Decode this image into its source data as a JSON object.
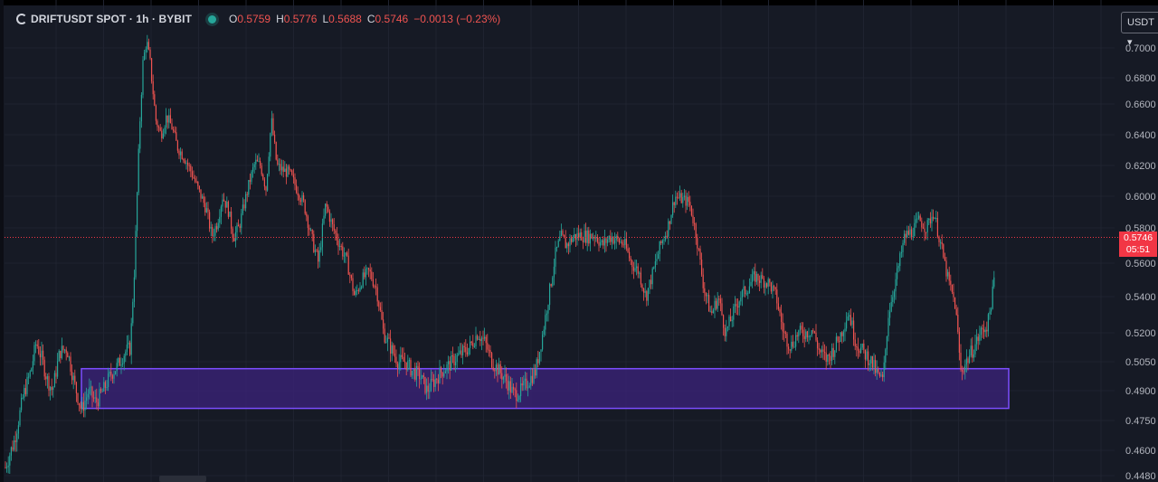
{
  "header": {
    "symbol_title": "DRIFTUSDT SPOT · 1h · BYBIT",
    "ohlc": [
      {
        "key": "O",
        "value": "0.5759"
      },
      {
        "key": "H",
        "value": "0.5776"
      },
      {
        "key": "L",
        "value": "0.5688"
      },
      {
        "key": "C",
        "value": "0.5746"
      }
    ],
    "change": "−0.0013 (−0.23%)"
  },
  "currency_button": {
    "label": "USDT ▾"
  },
  "price_tag": {
    "price": "0.5746",
    "countdown": "05:51"
  },
  "colors": {
    "up": "#26a69a",
    "down": "#ef5350",
    "zone_fill": "#3b2278",
    "zone_border": "#7c4dff",
    "background": "#161a25",
    "grid": "#1f2330",
    "price_line": "#f23645"
  },
  "chart_data": {
    "type": "candlestick",
    "symbol": "DRIFTUSDT SPOT",
    "interval": "1h",
    "exchange": "BYBIT",
    "ylim": [
      0.4448,
      0.71
    ],
    "y_ticks": [
      "0.7000",
      "0.6800",
      "0.6600",
      "0.6400",
      "0.6200",
      "0.6000",
      "0.5800",
      "0.5600",
      "0.5400",
      "0.5200",
      "0.5050",
      "0.4900",
      "0.4750",
      "0.4600",
      "0.4480"
    ],
    "last_price": 0.5746,
    "support_zone": {
      "low": 0.4811,
      "high": 0.5014
    },
    "close_path": [
      [
        0,
        0.452
      ],
      [
        10,
        0.465
      ],
      [
        20,
        0.488
      ],
      [
        28,
        0.5
      ],
      [
        34,
        0.515
      ],
      [
        40,
        0.507
      ],
      [
        46,
        0.496
      ],
      [
        52,
        0.49
      ],
      [
        60,
        0.51
      ],
      [
        68,
        0.512
      ],
      [
        76,
        0.494
      ],
      [
        84,
        0.48
      ],
      [
        92,
        0.49
      ],
      [
        100,
        0.484
      ],
      [
        108,
        0.49
      ],
      [
        116,
        0.498
      ],
      [
        124,
        0.503
      ],
      [
        132,
        0.51
      ],
      [
        138,
        0.512
      ],
      [
        143,
        0.56
      ],
      [
        148,
        0.64
      ],
      [
        152,
        0.69
      ],
      [
        156,
        0.705
      ],
      [
        160,
        0.69
      ],
      [
        166,
        0.65
      ],
      [
        172,
        0.64
      ],
      [
        178,
        0.652
      ],
      [
        184,
        0.645
      ],
      [
        190,
        0.632
      ],
      [
        198,
        0.625
      ],
      [
        206,
        0.615
      ],
      [
        214,
        0.603
      ],
      [
        222,
        0.592
      ],
      [
        228,
        0.575
      ],
      [
        234,
        0.583
      ],
      [
        240,
        0.6
      ],
      [
        246,
        0.592
      ],
      [
        252,
        0.575
      ],
      [
        258,
        0.58
      ],
      [
        264,
        0.595
      ],
      [
        270,
        0.61
      ],
      [
        276,
        0.622
      ],
      [
        282,
        0.62
      ],
      [
        288,
        0.605
      ],
      [
        294,
        0.65
      ],
      [
        300,
        0.62
      ],
      [
        306,
        0.617
      ],
      [
        314,
        0.615
      ],
      [
        322,
        0.605
      ],
      [
        330,
        0.595
      ],
      [
        338,
        0.575
      ],
      [
        346,
        0.56
      ],
      [
        354,
        0.595
      ],
      [
        362,
        0.58
      ],
      [
        370,
        0.57
      ],
      [
        378,
        0.56
      ],
      [
        386,
        0.54
      ],
      [
        394,
        0.55
      ],
      [
        402,
        0.555
      ],
      [
        410,
        0.545
      ],
      [
        418,
        0.52
      ],
      [
        426,
        0.512
      ],
      [
        434,
        0.505
      ],
      [
        442,
        0.505
      ],
      [
        450,
        0.5
      ],
      [
        458,
        0.498
      ],
      [
        466,
        0.49
      ],
      [
        474,
        0.495
      ],
      [
        482,
        0.5
      ],
      [
        490,
        0.503
      ],
      [
        498,
        0.507
      ],
      [
        506,
        0.51
      ],
      [
        514,
        0.513
      ],
      [
        522,
        0.52
      ],
      [
        530,
        0.515
      ],
      [
        538,
        0.505
      ],
      [
        546,
        0.5
      ],
      [
        554,
        0.495
      ],
      [
        562,
        0.488
      ],
      [
        570,
        0.49
      ],
      [
        578,
        0.495
      ],
      [
        586,
        0.5
      ],
      [
        594,
        0.52
      ],
      [
        602,
        0.545
      ],
      [
        608,
        0.565
      ],
      [
        614,
        0.575
      ],
      [
        620,
        0.57
      ],
      [
        628,
        0.575
      ],
      [
        636,
        0.576
      ],
      [
        644,
        0.575
      ],
      [
        652,
        0.576
      ],
      [
        660,
        0.57
      ],
      [
        668,
        0.575
      ],
      [
        676,
        0.573
      ],
      [
        684,
        0.571
      ],
      [
        692,
        0.56
      ],
      [
        700,
        0.555
      ],
      [
        708,
        0.54
      ],
      [
        716,
        0.555
      ],
      [
        724,
        0.57
      ],
      [
        732,
        0.58
      ],
      [
        740,
        0.6
      ],
      [
        748,
        0.598
      ],
      [
        756,
        0.596
      ],
      [
        764,
        0.575
      ],
      [
        772,
        0.545
      ],
      [
        780,
        0.53
      ],
      [
        788,
        0.54
      ],
      [
        796,
        0.52
      ],
      [
        804,
        0.53
      ],
      [
        812,
        0.54
      ],
      [
        820,
        0.545
      ],
      [
        828,
        0.552
      ],
      [
        836,
        0.55
      ],
      [
        844,
        0.548
      ],
      [
        852,
        0.54
      ],
      [
        860,
        0.52
      ],
      [
        868,
        0.513
      ],
      [
        876,
        0.52
      ],
      [
        884,
        0.52
      ],
      [
        892,
        0.522
      ],
      [
        900,
        0.51
      ],
      [
        908,
        0.506
      ],
      [
        916,
        0.512
      ],
      [
        924,
        0.52
      ],
      [
        932,
        0.532
      ],
      [
        940,
        0.515
      ],
      [
        948,
        0.51
      ],
      [
        956,
        0.506
      ],
      [
        964,
        0.498
      ],
      [
        970,
        0.495
      ],
      [
        976,
        0.53
      ],
      [
        982,
        0.545
      ],
      [
        988,
        0.56
      ],
      [
        994,
        0.575
      ],
      [
        1002,
        0.578
      ],
      [
        1010,
        0.585
      ],
      [
        1018,
        0.58
      ],
      [
        1026,
        0.59
      ],
      [
        1034,
        0.57
      ],
      [
        1042,
        0.55
      ],
      [
        1050,
        0.535
      ],
      [
        1056,
        0.5
      ],
      [
        1062,
        0.505
      ],
      [
        1070,
        0.512
      ],
      [
        1078,
        0.52
      ],
      [
        1086,
        0.525
      ],
      [
        1092,
        0.545
      ],
      [
        1097,
        0.575
      ],
      [
        1100,
        0.5746
      ]
    ]
  }
}
